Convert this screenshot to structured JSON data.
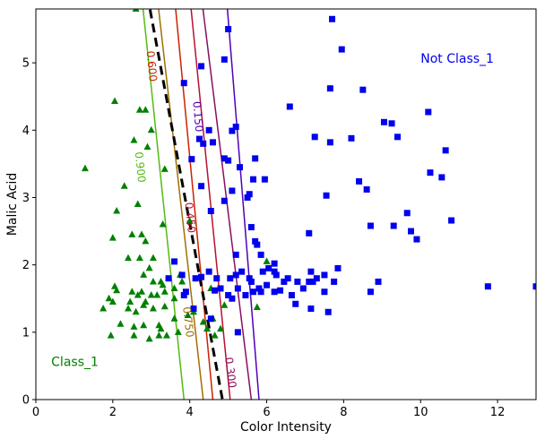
{
  "chart_data": {
    "type": "scatter",
    "title": "",
    "xlabel": "Color Intensity",
    "ylabel": "Malic Acid",
    "xlim": [
      0,
      13
    ],
    "ylim": [
      0,
      5.8
    ],
    "xticks": [
      0,
      2,
      4,
      6,
      8,
      10,
      12
    ],
    "yticks": [
      0,
      1,
      2,
      3,
      4,
      5
    ],
    "grid": false,
    "annotations": [
      {
        "text": "Not Class_1",
        "x": 10.0,
        "y": 5.0,
        "color": "#0000ee"
      },
      {
        "text": "Class_1",
        "x": 0.4,
        "y": 0.5,
        "color": "#008000"
      }
    ],
    "series": [
      {
        "marker": "triangle",
        "color": "#008000",
        "points": [
          [
            1.28,
            3.43
          ],
          [
            2.05,
            4.43
          ],
          [
            2.6,
            5.8
          ],
          [
            2.7,
            4.3
          ],
          [
            2.85,
            4.3
          ],
          [
            2.55,
            3.85
          ],
          [
            2.9,
            3.75
          ],
          [
            3.0,
            4.0
          ],
          [
            2.3,
            3.17
          ],
          [
            3.35,
            3.42
          ],
          [
            2.1,
            2.8
          ],
          [
            2.65,
            2.9
          ],
          [
            2.5,
            2.45
          ],
          [
            2.75,
            2.45
          ],
          [
            2.85,
            2.35
          ],
          [
            2.0,
            2.4
          ],
          [
            2.4,
            2.1
          ],
          [
            2.7,
            2.1
          ],
          [
            3.05,
            2.1
          ],
          [
            3.3,
            2.6
          ],
          [
            2.8,
            1.85
          ],
          [
            2.95,
            1.95
          ],
          [
            3.05,
            1.75
          ],
          [
            3.25,
            1.75
          ],
          [
            2.05,
            1.68
          ],
          [
            2.1,
            1.62
          ],
          [
            2.5,
            1.6
          ],
          [
            2.65,
            1.55
          ],
          [
            2.75,
            1.6
          ],
          [
            3.0,
            1.55
          ],
          [
            3.3,
            1.7
          ],
          [
            3.35,
            1.6
          ],
          [
            1.9,
            1.5
          ],
          [
            2.0,
            1.45
          ],
          [
            2.45,
            1.45
          ],
          [
            2.85,
            1.45
          ],
          [
            3.15,
            1.55
          ],
          [
            3.6,
            1.65
          ],
          [
            3.75,
            1.85
          ],
          [
            1.75,
            1.35
          ],
          [
            2.4,
            1.35
          ],
          [
            2.6,
            1.3
          ],
          [
            2.8,
            1.4
          ],
          [
            3.05,
            1.35
          ],
          [
            3.35,
            1.38
          ],
          [
            3.6,
            1.5
          ],
          [
            3.8,
            1.75
          ],
          [
            2.2,
            1.12
          ],
          [
            2.55,
            1.08
          ],
          [
            2.8,
            1.1
          ],
          [
            3.2,
            1.1
          ],
          [
            3.25,
            1.05
          ],
          [
            3.6,
            1.2
          ],
          [
            1.95,
            0.95
          ],
          [
            2.55,
            0.95
          ],
          [
            2.95,
            0.9
          ],
          [
            3.2,
            0.95
          ],
          [
            3.4,
            0.95
          ],
          [
            3.7,
            1.0
          ],
          [
            3.95,
            1.25
          ],
          [
            4.1,
            1.3
          ],
          [
            4.35,
            1.15
          ],
          [
            4.45,
            1.05
          ],
          [
            4.6,
            1.2
          ],
          [
            4.65,
            0.95
          ],
          [
            4.8,
            1.05
          ],
          [
            4.9,
            1.4
          ],
          [
            4.0,
            2.65
          ],
          [
            4.55,
            1.65
          ],
          [
            5.75,
            1.37
          ],
          [
            6.0,
            2.05
          ]
        ]
      },
      {
        "marker": "square",
        "color": "#0000ee",
        "points": [
          [
            7.7,
            5.65
          ],
          [
            7.95,
            5.2
          ],
          [
            5.0,
            5.5
          ],
          [
            4.9,
            5.05
          ],
          [
            4.3,
            4.95
          ],
          [
            3.85,
            4.7
          ],
          [
            6.6,
            4.35
          ],
          [
            7.65,
            4.62
          ],
          [
            8.5,
            4.6
          ],
          [
            10.2,
            4.27
          ],
          [
            9.05,
            4.12
          ],
          [
            9.25,
            4.1
          ],
          [
            5.2,
            4.05
          ],
          [
            5.1,
            3.99
          ],
          [
            4.5,
            4.0
          ],
          [
            4.25,
            3.87
          ],
          [
            4.35,
            3.8
          ],
          [
            4.6,
            3.82
          ],
          [
            7.25,
            3.9
          ],
          [
            7.65,
            3.82
          ],
          [
            8.2,
            3.88
          ],
          [
            9.4,
            3.9
          ],
          [
            10.65,
            3.7
          ],
          [
            4.05,
            3.57
          ],
          [
            4.9,
            3.58
          ],
          [
            5.0,
            3.55
          ],
          [
            5.3,
            3.45
          ],
          [
            5.7,
            3.58
          ],
          [
            10.25,
            3.37
          ],
          [
            10.55,
            3.3
          ],
          [
            8.4,
            3.24
          ],
          [
            8.6,
            3.12
          ],
          [
            5.1,
            3.1
          ],
          [
            5.5,
            3.0
          ],
          [
            5.65,
            3.27
          ],
          [
            5.95,
            3.27
          ],
          [
            5.55,
            3.05
          ],
          [
            4.3,
            3.17
          ],
          [
            4.55,
            2.8
          ],
          [
            4.9,
            2.95
          ],
          [
            7.55,
            3.03
          ],
          [
            8.7,
            2.58
          ],
          [
            9.3,
            2.58
          ],
          [
            9.65,
            2.77
          ],
          [
            9.75,
            2.5
          ],
          [
            9.9,
            2.38
          ],
          [
            10.8,
            2.66
          ],
          [
            7.1,
            2.47
          ],
          [
            5.6,
            2.56
          ],
          [
            5.7,
            2.35
          ],
          [
            5.75,
            2.3
          ],
          [
            5.85,
            2.15
          ],
          [
            5.2,
            2.15
          ],
          [
            3.6,
            2.05
          ],
          [
            3.45,
            1.8
          ],
          [
            3.8,
            1.85
          ],
          [
            3.85,
            1.55
          ],
          [
            3.9,
            1.6
          ],
          [
            4.15,
            1.8
          ],
          [
            4.3,
            1.82
          ],
          [
            4.5,
            1.9
          ],
          [
            4.7,
            1.8
          ],
          [
            4.8,
            1.65
          ],
          [
            4.65,
            1.62
          ],
          [
            5.05,
            1.8
          ],
          [
            5.2,
            1.85
          ],
          [
            5.35,
            1.9
          ],
          [
            5.55,
            1.8
          ],
          [
            5.6,
            1.75
          ],
          [
            5.8,
            1.65
          ],
          [
            5.9,
            1.9
          ],
          [
            6.05,
            1.95
          ],
          [
            6.2,
            1.9
          ],
          [
            6.25,
            1.85
          ],
          [
            6.2,
            2.02
          ],
          [
            6.45,
            1.75
          ],
          [
            6.55,
            1.8
          ],
          [
            6.65,
            1.55
          ],
          [
            6.8,
            1.75
          ],
          [
            6.95,
            1.65
          ],
          [
            7.1,
            1.75
          ],
          [
            7.2,
            1.75
          ],
          [
            7.3,
            1.8
          ],
          [
            7.5,
            1.85
          ],
          [
            7.85,
            1.95
          ],
          [
            7.15,
            1.9
          ],
          [
            7.5,
            1.6
          ],
          [
            7.75,
            1.75
          ],
          [
            8.7,
            1.6
          ],
          [
            8.9,
            1.75
          ],
          [
            5.0,
            1.55
          ],
          [
            5.1,
            1.5
          ],
          [
            5.25,
            1.65
          ],
          [
            5.45,
            1.55
          ],
          [
            5.65,
            1.6
          ],
          [
            5.85,
            1.6
          ],
          [
            6.0,
            1.7
          ],
          [
            6.2,
            1.6
          ],
          [
            6.35,
            1.62
          ],
          [
            6.75,
            1.42
          ],
          [
            7.15,
            1.35
          ],
          [
            7.6,
            1.3
          ],
          [
            4.1,
            1.35
          ],
          [
            4.55,
            1.2
          ],
          [
            5.25,
            1.0
          ],
          [
            11.75,
            1.68
          ],
          [
            13.0,
            1.68
          ]
        ]
      }
    ],
    "contours": [
      {
        "label": "0.900",
        "color": "#55bb11",
        "p1": [
          2.75,
          6.0
        ],
        "p2": [
          3.85,
          0.0
        ],
        "label_at": [
          2.7,
          3.45
        ]
      },
      {
        "label": "0.750",
        "color": "#a07000",
        "p1": [
          3.15,
          6.0
        ],
        "p2": [
          4.35,
          0.0
        ],
        "label_at": [
          3.95,
          1.15
        ]
      },
      {
        "label": "0.600",
        "color": "#cc2200",
        "p1": [
          3.6,
          6.0
        ],
        "p2": [
          4.6,
          0.0
        ],
        "label_at": [
          3.0,
          4.95
        ]
      },
      {
        "label": "0.450",
        "color": "#b81030",
        "p1": [
          4.0,
          6.0
        ],
        "p2": [
          5.05,
          0.0
        ],
        "label_at": [
          4.0,
          2.7
        ]
      },
      {
        "label": "0.300",
        "color": "#8a0e60",
        "p1": [
          4.3,
          6.0
        ],
        "p2": [
          5.6,
          0.0
        ],
        "label_at": [
          5.05,
          0.4
        ]
      },
      {
        "label": "0.150",
        "color": "#5000b8",
        "p1": [
          4.95,
          6.0
        ],
        "p2": [
          5.8,
          0.0
        ],
        "label_at": [
          4.2,
          4.2
        ]
      }
    ],
    "decision_boundary": {
      "color": "#000000",
      "style": "dashed",
      "p1": [
        2.9,
        6.0
      ],
      "p2": [
        4.85,
        0.0
      ]
    }
  }
}
